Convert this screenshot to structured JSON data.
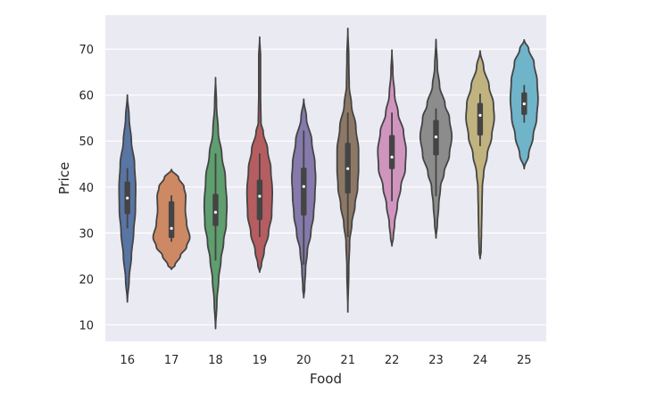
{
  "chart_data": {
    "type": "violin",
    "title": "",
    "xlabel": "Food",
    "ylabel": "Price",
    "ylim": [
      6.4,
      77.4
    ],
    "yticks": [
      10,
      20,
      30,
      40,
      50,
      60,
      70
    ],
    "grid": "horizontal",
    "background": "#eaeaf2",
    "categories": [
      "16",
      "17",
      "18",
      "19",
      "20",
      "21",
      "22",
      "23",
      "24",
      "25"
    ],
    "colors": [
      "#5975a4",
      "#cc8963",
      "#5f9e6e",
      "#b55d60",
      "#857aab",
      "#8d7866",
      "#d095bf",
      "#8c8c8c",
      "#c1b37f",
      "#6fb4c9"
    ],
    "violins": [
      {
        "category": "16",
        "q1": 34.1,
        "median": 37.6,
        "q3": 41.2,
        "whisker_low": 31.0,
        "whisker_high": 44.1,
        "density": [
          [
            15,
            0
          ],
          [
            20,
            2
          ],
          [
            25,
            4.5
          ],
          [
            30,
            7
          ],
          [
            35,
            9
          ],
          [
            40,
            9.3
          ],
          [
            45,
            8
          ],
          [
            50,
            4.5
          ],
          [
            55,
            2
          ],
          [
            60,
            0
          ]
        ]
      },
      {
        "category": "17",
        "q1": 28.9,
        "median": 31.0,
        "q3": 36.9,
        "whisker_low": 28.1,
        "whisker_high": 38.2,
        "density": [
          [
            22.1,
            0
          ],
          [
            23,
            4
          ],
          [
            25,
            10
          ],
          [
            27,
            17
          ],
          [
            29,
            20.5
          ],
          [
            32,
            17
          ],
          [
            35,
            15.5
          ],
          [
            38,
            16
          ],
          [
            40,
            14
          ],
          [
            42,
            8
          ],
          [
            43.8,
            0
          ]
        ]
      },
      {
        "category": "18",
        "q1": 31.5,
        "median": 34.5,
        "q3": 38.5,
        "whisker_low": 24.0,
        "whisker_high": 47.3,
        "density": [
          [
            9.2,
            0
          ],
          [
            15,
            1.5
          ],
          [
            20,
            3.5
          ],
          [
            24,
            6
          ],
          [
            28,
            9
          ],
          [
            32,
            12
          ],
          [
            36,
            12.7
          ],
          [
            42,
            11
          ],
          [
            47,
            7
          ],
          [
            52,
            3
          ],
          [
            58,
            1
          ],
          [
            63.8,
            0
          ]
        ]
      },
      {
        "category": "19",
        "q1": 32.8,
        "median": 38.0,
        "q3": 41.6,
        "whisker_low": 29.1,
        "whisker_high": 47.3,
        "density": [
          [
            21.5,
            0
          ],
          [
            23,
            2
          ],
          [
            26,
            5
          ],
          [
            30,
            10
          ],
          [
            34,
            13.5
          ],
          [
            39,
            14.2
          ],
          [
            44,
            12.5
          ],
          [
            48,
            9
          ],
          [
            52,
            4
          ],
          [
            54,
            1.5
          ],
          [
            60,
            1
          ],
          [
            68,
            1
          ],
          [
            72.6,
            0
          ]
        ]
      },
      {
        "category": "20",
        "q1": 33.8,
        "median": 40.1,
        "q3": 44.2,
        "whisker_low": 23.1,
        "whisker_high": 52.3,
        "density": [
          [
            15.9,
            0
          ],
          [
            18,
            1
          ],
          [
            22,
            2
          ],
          [
            26,
            4
          ],
          [
            30,
            8
          ],
          [
            34,
            11
          ],
          [
            38,
            12.5
          ],
          [
            42,
            13.3
          ],
          [
            45,
            12.5
          ],
          [
            50,
            9
          ],
          [
            55,
            3
          ],
          [
            59.1,
            0
          ]
        ]
      },
      {
        "category": "21",
        "q1": 38.6,
        "median": 44.0,
        "q3": 49.6,
        "whisker_low": 29.1,
        "whisker_high": 56.2,
        "density": [
          [
            12.8,
            0
          ],
          [
            22,
            1
          ],
          [
            28,
            2
          ],
          [
            32,
            4.5
          ],
          [
            36,
            8
          ],
          [
            40,
            11
          ],
          [
            44,
            12
          ],
          [
            48,
            12
          ],
          [
            53,
            9
          ],
          [
            58,
            4
          ],
          [
            62,
            1.5
          ],
          [
            68,
            1
          ],
          [
            74.5,
            0
          ]
        ]
      },
      {
        "category": "22",
        "q1": 43.9,
        "median": 46.5,
        "q3": 51.3,
        "whisker_low": 36.9,
        "whisker_high": 56.2,
        "density": [
          [
            27.2,
            0
          ],
          [
            29,
            1.5
          ],
          [
            32,
            3
          ],
          [
            36,
            6
          ],
          [
            40,
            10
          ],
          [
            44,
            15
          ],
          [
            48,
            15.8
          ],
          [
            52,
            13
          ],
          [
            56,
            7
          ],
          [
            60,
            3
          ],
          [
            65,
            1
          ],
          [
            69.8,
            0
          ]
        ]
      },
      {
        "category": "23",
        "q1": 46.9,
        "median": 50.9,
        "q3": 54.6,
        "whisker_low": 38.0,
        "whisker_high": 57.1,
        "density": [
          [
            28.9,
            0
          ],
          [
            32,
            1.5
          ],
          [
            36,
            3
          ],
          [
            40,
            5
          ],
          [
            43,
            9
          ],
          [
            47,
            15
          ],
          [
            51,
            17.7
          ],
          [
            55,
            15
          ],
          [
            58,
            10
          ],
          [
            62,
            4
          ],
          [
            66,
            1.5
          ],
          [
            72.1,
            0
          ]
        ]
      },
      {
        "category": "24",
        "q1": 51.2,
        "median": 55.6,
        "q3": 58.3,
        "whisker_low": 48.9,
        "whisker_high": 60.3,
        "density": [
          [
            24.4,
            0
          ],
          [
            26,
            1
          ],
          [
            30,
            1.5
          ],
          [
            35,
            2
          ],
          [
            40,
            2.5
          ],
          [
            43,
            4
          ],
          [
            47,
            8
          ],
          [
            51,
            13
          ],
          [
            55,
            15.8
          ],
          [
            58,
            15
          ],
          [
            62,
            10
          ],
          [
            66,
            4
          ],
          [
            69.6,
            0
          ]
        ]
      },
      {
        "category": "25",
        "q1": 55.7,
        "median": 58.1,
        "q3": 60.6,
        "whisker_low": 54.0,
        "whisker_high": 62.2,
        "density": [
          [
            44,
            0
          ],
          [
            47,
            5
          ],
          [
            51,
            10
          ],
          [
            55,
            14
          ],
          [
            59,
            15.5
          ],
          [
            63,
            14.5
          ],
          [
            67,
            11
          ],
          [
            70,
            5
          ],
          [
            72,
            0
          ]
        ]
      }
    ]
  }
}
